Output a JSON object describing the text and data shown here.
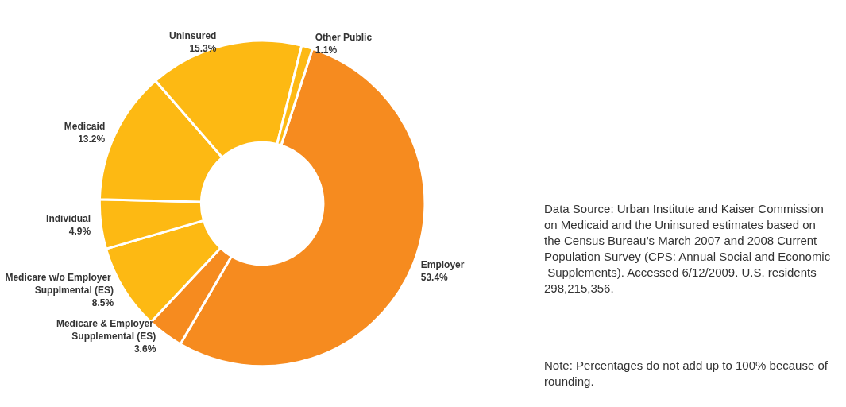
{
  "chart_data": {
    "type": "donut",
    "categories": [
      "Employer",
      "Medicare & Employer Supplemental (ES)",
      "Medicare w/o Employer Supplmental (ES)",
      "Individual",
      "Medicaid",
      "Uninsured",
      "Other Public"
    ],
    "values": [
      53.4,
      3.6,
      8.5,
      4.9,
      13.2,
      15.3,
      1.1
    ],
    "value_labels": [
      "53.4%",
      "3.6%",
      "8.5%",
      "4.9%",
      "13.2%",
      "15.3%",
      "1.1%"
    ],
    "colors": [
      "#f68b1f",
      "#f68b1f",
      "#fdb913",
      "#fdb913",
      "#fdb913",
      "#fdb913",
      "#fdb913"
    ],
    "legend": false,
    "annotations": [
      "Data Source: Urban Institute and Kaiser Commission on Medicaid and the Uninsured estimates based on the Census Bureau’s March 2007 and 2008 Current Population Survey (CPS: Annual Social and Economic Supplements). Accessed 6/12/2009. U.S. residents 298,215,356.",
      "Note: Percentages do not add up to 100% because of rounding."
    ]
  }
}
